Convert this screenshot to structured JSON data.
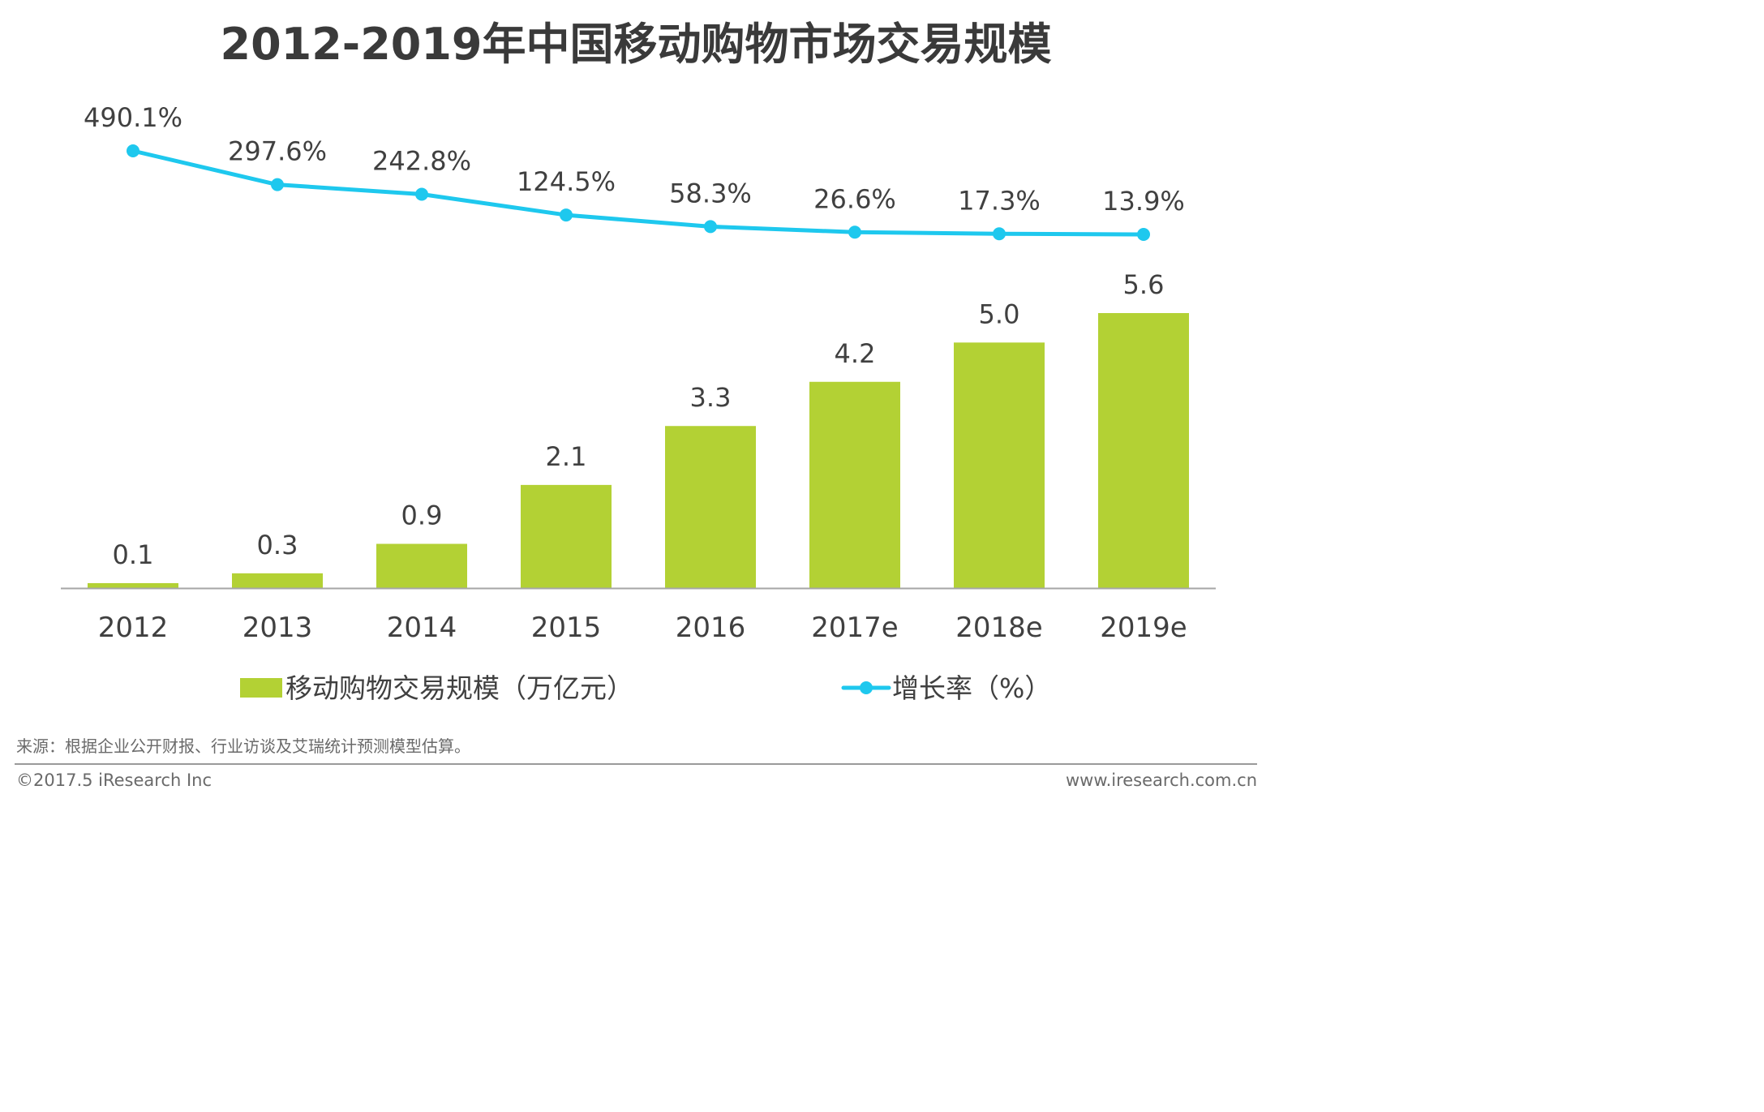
{
  "title": "2012-2019年中国移动购物市场交易规模",
  "source": "来源：根据企业公开财报、行业访谈及艾瑞统计预测模型估算。",
  "copyright": "©2017.5 iResearch Inc",
  "website": "www.iresearch.com.cn",
  "colors": {
    "bar": "#b3d134",
    "line": "#1ec8ee",
    "text": "#404040",
    "axis": "#a6a6a6"
  },
  "chart_data": {
    "type": "bar",
    "categories": [
      "2012",
      "2013",
      "2014",
      "2015",
      "2016",
      "2017e",
      "2018e",
      "2019e"
    ],
    "series": [
      {
        "name": "移动购物交易规模（万亿元）",
        "type": "bar",
        "values": [
          0.1,
          0.3,
          0.9,
          2.1,
          3.3,
          4.2,
          5.0,
          5.6
        ],
        "labels": [
          "0.1",
          "0.3",
          "0.9",
          "2.1",
          "3.3",
          "4.2",
          "5.0",
          "5.6"
        ]
      },
      {
        "name": "增长率（%）",
        "type": "line",
        "values": [
          490.1,
          297.6,
          242.8,
          124.5,
          58.3,
          26.6,
          17.3,
          13.9
        ],
        "labels": [
          "490.1%",
          "297.6%",
          "242.8%",
          "124.5%",
          "58.3%",
          "26.6%",
          "17.3%",
          "13.9%"
        ]
      }
    ],
    "ylim": [
      0,
      5.6
    ],
    "y2lim": [
      0,
      490.1
    ],
    "legend": {
      "position": "bottom",
      "bar_label": "移动购物交易规模（万亿元）",
      "line_label": "增长率（%）"
    }
  }
}
